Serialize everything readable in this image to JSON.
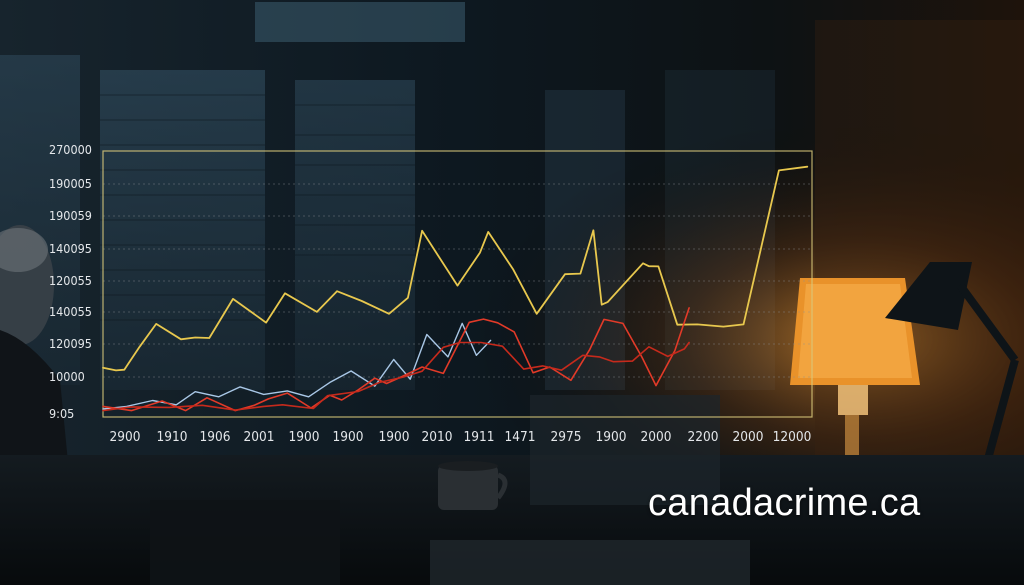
{
  "watermark": "canadacrime.ca",
  "colors": {
    "axis_frame": "#d9c97a",
    "gridline": "#8a8f94",
    "tick_text": "#e4e7ea"
  },
  "chart_data": {
    "type": "line",
    "title": "",
    "xlabel": "",
    "ylabel": "",
    "grid": true,
    "legend": "none",
    "y_tick_labels": [
      "270000",
      "190005",
      "190059",
      "140095",
      "120055",
      "140055",
      "120095",
      "10000",
      "9:05"
    ],
    "x_tick_labels": [
      "2900",
      "1910",
      "1906",
      "2001",
      "1900",
      "1900",
      "1900",
      "2010",
      "1911",
      "1471",
      "2975",
      "1900",
      "2000",
      "2200",
      "2000",
      "12000"
    ],
    "x_index_range": [
      0,
      20
    ],
    "y_scale_range": [
      0,
      100
    ],
    "series": [
      {
        "color": "#e8c84e",
        "width": 1.8,
        "x": [
          0,
          0.55,
          0.9,
          1.55,
          2.25,
          3.3,
          3.9,
          4.5,
          5.5,
          6.9,
          7.7,
          9.05,
          9.9,
          10.95,
          12.1,
          12.9,
          13.5,
          15,
          15.95,
          16.3,
          17.35,
          18.35,
          19.55,
          20.2,
          20.75,
          21.1,
          21.35,
          22.85,
          23.1,
          23.5,
          24.3,
          25.15,
          26.25,
          27.1,
          28.6,
          29.8
        ],
        "y": [
          18.5,
          17.5,
          17.8,
          26.4,
          35,
          29.2,
          29.9,
          29.7,
          44.4,
          35.5,
          46.5,
          39.5,
          47.3,
          43.6,
          38.8,
          44.8,
          70,
          49.4,
          61.8,
          69.6,
          55.6,
          38.8,
          53.7,
          53.9,
          70.2,
          42.2,
          43.2,
          57.8,
          56.7,
          56.6,
          34.7,
          34.8,
          34,
          34.8,
          92.7,
          94.1
        ]
      },
      {
        "color": "#a9c7e6",
        "width": 1.4,
        "x": [
          0,
          1.0,
          2.1,
          3.1,
          3.9,
          4.9,
          5.8,
          6.8,
          7.8,
          8.7,
          9.6,
          10.5,
          11.5,
          12.3,
          13.0,
          13.7,
          14.6,
          15.2,
          15.8,
          16.4
        ],
        "y": [
          3,
          4,
          6.2,
          4.6,
          9.5,
          7.6,
          11.3,
          8.5,
          9.8,
          7.6,
          13,
          17.3,
          11.6,
          21.6,
          14.2,
          31,
          22.6,
          35.2,
          23.2,
          28.8
        ]
      },
      {
        "color": "#e23a28",
        "width": 1.6,
        "x": [
          0,
          1.2,
          2.5,
          3.5,
          4.4,
          5.6,
          6.4,
          7.0,
          7.8,
          8.8,
          9.6,
          10.1,
          10.8,
          11.5,
          12.0,
          12.6,
          13.5,
          14.4,
          15.5,
          16.1,
          16.7,
          17.4,
          18.2,
          18.9,
          19.8,
          20.6,
          21.2,
          22.0,
          22.8,
          23.4,
          24.2,
          24.8
        ],
        "y": [
          4,
          2.4,
          6,
          2.4,
          7.2,
          2.4,
          4.4,
          6.8,
          9,
          3.4,
          8.2,
          6.4,
          10.2,
          14.6,
          12.6,
          15,
          18.8,
          16.4,
          35.6,
          36.8,
          35.4,
          32,
          16.6,
          18.8,
          13.8,
          25.4,
          36.7,
          35.2,
          22.6,
          11.8,
          25,
          41
        ]
      },
      {
        "color": "#c62a1c",
        "width": 1.6,
        "x": [
          0,
          1.2,
          2.8,
          4.2,
          5.6,
          6.8,
          7.6,
          8.9,
          9.5,
          10.8,
          11.7,
          12.7,
          13.5,
          14.4,
          15.1,
          16.0,
          16.9,
          17.8,
          18.6,
          19.4,
          20.3,
          21.0,
          21.6,
          22.4,
          23.1,
          23.9,
          24.6,
          24.8
        ],
        "y": [
          2.4,
          3.8,
          3.6,
          4.4,
          2.6,
          4,
          4.6,
          3.2,
          8,
          9.6,
          13,
          15,
          17.2,
          26.2,
          28,
          28,
          26.6,
          18,
          19.2,
          17.6,
          23.2,
          22.6,
          20.8,
          21,
          26.4,
          22.8,
          25.6,
          28
        ]
      }
    ]
  }
}
